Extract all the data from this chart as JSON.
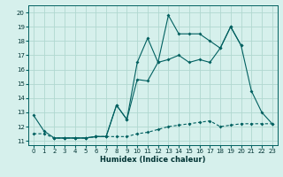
{
  "title": "",
  "xlabel": "Humidex (Indice chaleur)",
  "bg_color": "#d6f0ec",
  "grid_color": "#b0d8d0",
  "line_color": "#006060",
  "xlim": [
    -0.5,
    23.5
  ],
  "ylim": [
    10.7,
    20.5
  ],
  "yticks": [
    11,
    12,
    13,
    14,
    15,
    16,
    17,
    18,
    19,
    20
  ],
  "xticks": [
    0,
    1,
    2,
    3,
    4,
    5,
    6,
    7,
    8,
    9,
    10,
    11,
    12,
    13,
    14,
    15,
    16,
    17,
    18,
    19,
    20,
    21,
    22,
    23
  ],
  "line1_x": [
    0,
    1,
    2,
    3,
    4,
    5,
    6,
    7,
    8,
    9,
    10,
    11,
    12,
    13,
    14,
    15,
    16,
    17,
    18,
    19,
    20,
    21,
    22,
    23
  ],
  "line1_y": [
    12.8,
    11.7,
    11.2,
    11.2,
    11.2,
    11.2,
    11.3,
    11.3,
    13.5,
    12.5,
    16.5,
    18.2,
    16.5,
    19.8,
    18.5,
    18.5,
    18.5,
    18.0,
    17.5,
    19.0,
    17.7,
    14.5,
    13.0,
    12.2
  ],
  "line2_x": [
    0,
    1,
    2,
    3,
    4,
    5,
    6,
    7,
    8,
    9,
    10,
    11,
    12,
    13,
    14,
    15,
    16,
    17,
    18,
    19,
    20,
    21,
    22,
    23
  ],
  "line2_y": [
    11.5,
    11.5,
    11.2,
    11.2,
    11.2,
    11.2,
    11.3,
    11.3,
    11.3,
    11.3,
    11.5,
    11.6,
    11.8,
    12.0,
    12.1,
    12.2,
    12.3,
    12.4,
    12.0,
    12.1,
    12.2,
    12.2,
    12.2,
    12.2
  ],
  "line3_x": [
    2,
    3,
    4,
    5,
    6,
    7,
    8,
    9,
    10,
    11,
    12,
    13,
    14,
    15,
    16,
    17,
    18,
    19,
    20
  ],
  "line3_y": [
    11.2,
    11.2,
    11.2,
    11.2,
    11.3,
    11.3,
    13.5,
    12.5,
    15.3,
    15.2,
    16.5,
    16.7,
    17.0,
    16.5,
    16.7,
    16.5,
    17.5,
    19.0,
    17.7
  ]
}
